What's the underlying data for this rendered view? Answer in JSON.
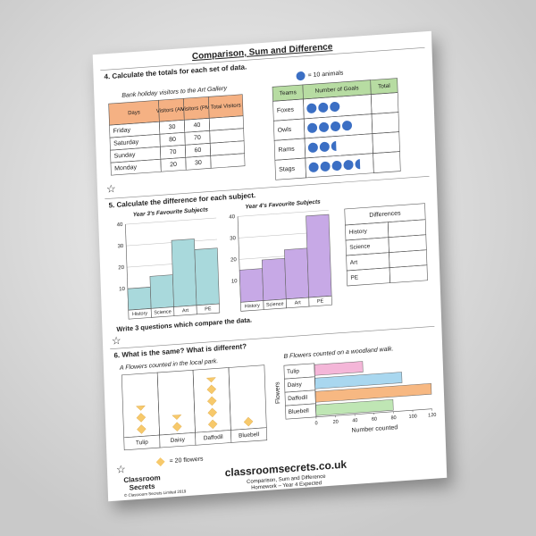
{
  "title": "Comparison, Sum and Difference",
  "q4": {
    "prompt": "4. Calculate the totals for each set of data.",
    "visitors": {
      "title": "Bank holiday visitors to the Art Gallery",
      "headers": [
        "Days",
        "Visitors (AM)",
        "Visitors (PM)",
        "Total Visitors"
      ],
      "rows": [
        [
          "Friday",
          30,
          40
        ],
        [
          "Saturday",
          80,
          70
        ],
        [
          "Sunday",
          70,
          60
        ],
        [
          "Monday",
          20,
          30
        ]
      ]
    },
    "goals": {
      "key": "= 10 animals",
      "headers": [
        "Teams",
        "Number of Goals",
        "Total"
      ],
      "categories": [
        "Foxes",
        "Owls",
        "Rams",
        "Stags"
      ],
      "symbols": [
        3,
        4,
        2.5,
        4.5
      ],
      "color": "#3b6fc4"
    }
  },
  "q5": {
    "prompt": "5. Calculate the difference for each subject.",
    "charts": [
      {
        "type": "bar",
        "title": "Year 3's Favourite Subjects",
        "categories": [
          "History",
          "Science",
          "Art",
          "PE"
        ],
        "values": [
          10,
          15,
          31,
          26
        ],
        "color": "#a9d9dc",
        "ylim": [
          0,
          40
        ],
        "yticks": [
          10,
          20,
          30,
          40
        ]
      },
      {
        "type": "bar",
        "title": "Year 4's Favourite Subjects",
        "categories": [
          "History",
          "Science",
          "Art",
          "PE"
        ],
        "values": [
          15,
          19,
          23,
          38
        ],
        "color": "#c7a9e6",
        "ylim": [
          0,
          40
        ],
        "yticks": [
          10,
          20,
          30,
          40
        ]
      }
    ],
    "differences": {
      "header": "Differences",
      "rows": [
        "History",
        "Science",
        "Art",
        "PE"
      ]
    },
    "questions": "Write 3 questions which compare the data."
  },
  "q6": {
    "prompt": "6. What is the same? What is different?",
    "park": {
      "title": "A  Flowers counted in the local park.",
      "categories": [
        "Tulip",
        "Daisy",
        "Daffodil",
        "Bluebell"
      ],
      "symbols": [
        2.5,
        1.5,
        4.5,
        1
      ],
      "key": "= 20 flowers",
      "color": "#f7c96b"
    },
    "walk": {
      "type": "bar",
      "title": "B  Flowers counted on a woodland walk.",
      "categories": [
        "Tulip",
        "Daisy",
        "Daffodil",
        "Bluebell"
      ],
      "values": [
        50,
        90,
        120,
        80
      ],
      "colors": [
        "#f4b6d8",
        "#a9d7ef",
        "#f7b882",
        "#bfe6b4"
      ],
      "xlim": [
        0,
        120
      ],
      "xticks": [
        0,
        20,
        40,
        60,
        80,
        100,
        120
      ],
      "xlabel": "Number counted",
      "ylabel": "Flowers"
    }
  },
  "footer": {
    "logo": [
      "Classroom",
      "Secrets"
    ],
    "copyright": "© Classroom Secrets Limited 2019",
    "site": "classroomsecrets.co.uk",
    "line1": "Comparison, Sum and Difference",
    "line2": "Homework – Year 4 Expected"
  }
}
